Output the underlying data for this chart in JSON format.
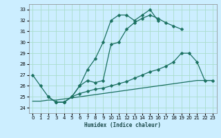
{
  "xlabel": "Humidex (Indice chaleur)",
  "bg_color": "#cceeff",
  "grid_color": "#aaddcc",
  "line_color": "#1a7060",
  "xlim": [
    -0.5,
    23.5
  ],
  "ylim": [
    23.5,
    33.5
  ],
  "yticks": [
    24,
    25,
    26,
    27,
    28,
    29,
    30,
    31,
    32,
    33
  ],
  "xticks": [
    0,
    1,
    2,
    3,
    4,
    5,
    6,
    7,
    8,
    9,
    10,
    11,
    12,
    13,
    14,
    15,
    16,
    17,
    18,
    19,
    20,
    21,
    22,
    23
  ],
  "line1_x": [
    0,
    1,
    2,
    3,
    4,
    5,
    6,
    7,
    8,
    9,
    10,
    11,
    12,
    13,
    14,
    15,
    16
  ],
  "line1_y": [
    27,
    26,
    25,
    24.5,
    24.5,
    25,
    26,
    27.5,
    28.5,
    30,
    32,
    32.5,
    32.5,
    32,
    32.5,
    33,
    32
  ],
  "line2_x": [
    3,
    4,
    5,
    6,
    7,
    8,
    9,
    10,
    11,
    12,
    13,
    14,
    15,
    16,
    17,
    18,
    19
  ],
  "line2_y": [
    24.5,
    24.5,
    25,
    26,
    26.5,
    26.3,
    26.5,
    29.8,
    30,
    31.2,
    31.8,
    32.2,
    32.5,
    32.2,
    31.8,
    31.5,
    31.2
  ],
  "line3_x": [
    2,
    3,
    4,
    5,
    6,
    7,
    8,
    9,
    10,
    11,
    12,
    13,
    14,
    15,
    16,
    17,
    18,
    19,
    20,
    21,
    22,
    23
  ],
  "line3_y": [
    25,
    24.5,
    24.5,
    25,
    25.3,
    25.5,
    25.7,
    25.8,
    26.0,
    26.2,
    26.4,
    26.7,
    27.0,
    27.3,
    27.5,
    27.8,
    28.2,
    29.0,
    29.0,
    28.2,
    26.5,
    26.5
  ],
  "line4_x": [
    0,
    1,
    2,
    3,
    4,
    5,
    6,
    7,
    8,
    9,
    10,
    11,
    12,
    13,
    14,
    15,
    16,
    17,
    18,
    19,
    20,
    21,
    22,
    23
  ],
  "line4_y": [
    24.6,
    24.6,
    24.7,
    24.7,
    24.8,
    24.9,
    25.0,
    25.1,
    25.2,
    25.3,
    25.4,
    25.5,
    25.6,
    25.7,
    25.8,
    25.9,
    26.0,
    26.1,
    26.2,
    26.3,
    26.4,
    26.5,
    26.5,
    26.5
  ]
}
